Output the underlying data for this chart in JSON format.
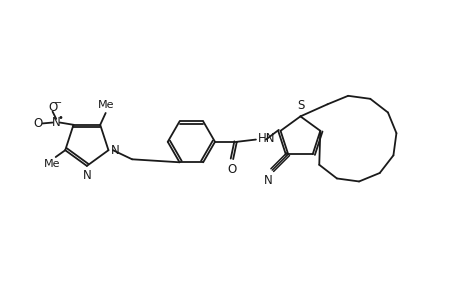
{
  "bg_color": "#ffffff",
  "line_color": "#1a1a1a",
  "line_width": 1.3,
  "text_color": "#1a1a1a",
  "font_size": 8.5,
  "xlim": [
    0,
    10
  ],
  "ylim": [
    0,
    6
  ]
}
